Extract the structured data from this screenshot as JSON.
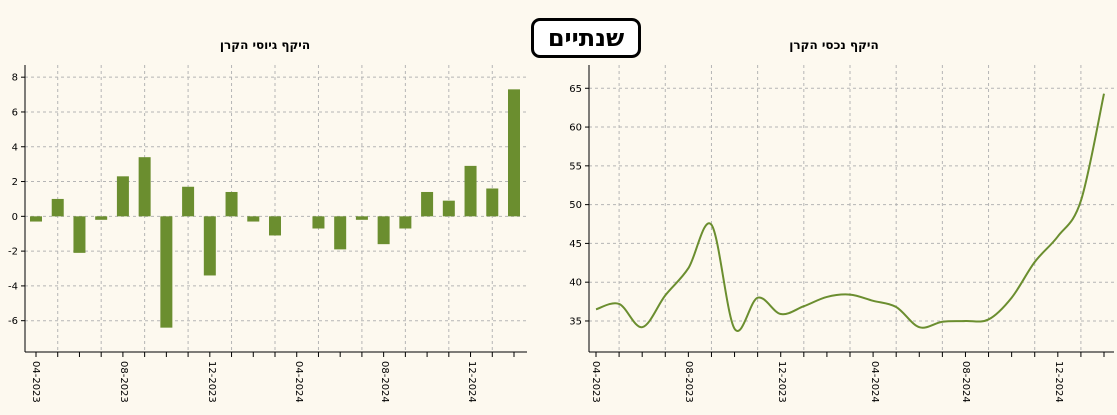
{
  "period_label": "שנתיים",
  "colors": {
    "accent": "#6b8e2f",
    "background": "#fdf9ef"
  },
  "chart_data": [
    {
      "id": "flows",
      "type": "bar",
      "title": "היקף גיוסי הקרן",
      "xlabel": "",
      "ylabel": "",
      "ylim": [
        -7.8,
        8.7
      ],
      "yticks": [
        -6,
        -4,
        -2,
        0,
        2,
        4,
        6,
        8
      ],
      "grid": true,
      "color": "#6b8e2f",
      "categories": [
        "04-2023",
        "05-2023",
        "06-2023",
        "07-2023",
        "08-2023",
        "09-2023",
        "10-2023",
        "11-2023",
        "12-2023",
        "01-2024",
        "02-2024",
        "03-2024",
        "04-2024",
        "05-2024",
        "06-2024",
        "07-2024",
        "08-2024",
        "09-2024",
        "10-2024",
        "11-2024",
        "12-2024",
        "01-2025",
        "02-2025"
      ],
      "values": [
        -0.3,
        1.0,
        -2.1,
        -0.2,
        2.3,
        3.4,
        -6.4,
        1.7,
        -3.4,
        1.4,
        -0.3,
        -1.1,
        0.0,
        -0.7,
        -1.9,
        -0.2,
        -1.6,
        -0.7,
        1.4,
        0.9,
        2.9,
        1.6,
        7.3
      ],
      "tick_labels": [
        "04-2023",
        "08-2023",
        "12-2023",
        "04-2024",
        "08-2024",
        "12-2024"
      ]
    },
    {
      "id": "assets",
      "type": "line",
      "title": "היקף נכסי הקרן",
      "xlabel": "",
      "ylabel": "",
      "ylim": [
        31,
        68
      ],
      "yticks": [
        35,
        40,
        45,
        50,
        55,
        60,
        65
      ],
      "grid": true,
      "color": "#6b8e2f",
      "categories": [
        "04-2023",
        "05-2023",
        "06-2023",
        "07-2023",
        "08-2023",
        "09-2023",
        "10-2023",
        "11-2023",
        "12-2023",
        "01-2024",
        "02-2024",
        "03-2024",
        "04-2024",
        "05-2024",
        "06-2024",
        "07-2024",
        "08-2024",
        "09-2024",
        "10-2024",
        "11-2024",
        "12-2024",
        "01-2025",
        "02-2025"
      ],
      "values": [
        36.5,
        37.2,
        34.2,
        38.3,
        41.8,
        47.4,
        34.0,
        38.0,
        35.9,
        36.9,
        38.1,
        38.4,
        37.6,
        36.8,
        34.2,
        34.9,
        35.0,
        35.2,
        38.0,
        42.6,
        45.9,
        50.5,
        64.3
      ],
      "tick_labels": [
        "04-2023",
        "08-2023",
        "12-2023",
        "04-2024",
        "08-2024",
        "12-2024"
      ]
    }
  ]
}
